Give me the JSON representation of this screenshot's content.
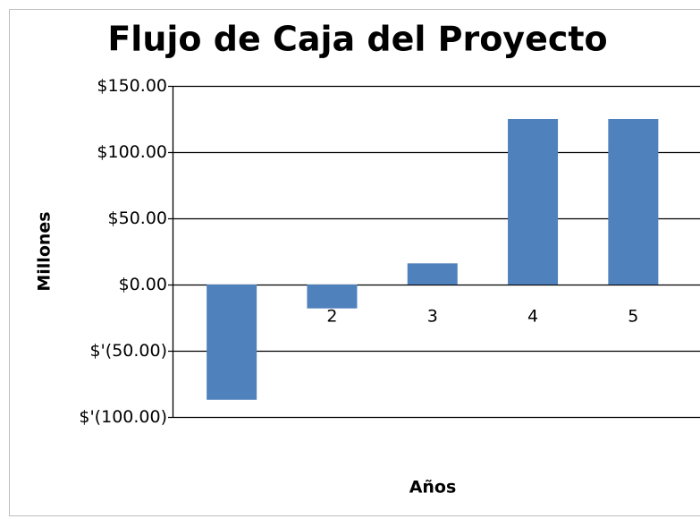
{
  "chart_data": {
    "type": "bar",
    "title": "Flujo de Caja del Proyecto",
    "x_label": "Años",
    "y_label": "Millones",
    "categories": [
      null,
      "2",
      "3",
      "4",
      "5"
    ],
    "values": [
      -87,
      -18,
      16,
      125,
      125
    ],
    "color": "#4f81bd",
    "ylim": [
      -100,
      150
    ],
    "yticks": [
      {
        "value": 150,
        "label": "$150.00"
      },
      {
        "value": 100,
        "label": "$100.00"
      },
      {
        "value": 50,
        "label": "$50.00"
      },
      {
        "value": 0,
        "label": "$0.00"
      },
      {
        "value": -50,
        "label": "$'(50.00)"
      },
      {
        "value": -100,
        "label": "$'(100.00)"
      }
    ],
    "grid": true
  }
}
